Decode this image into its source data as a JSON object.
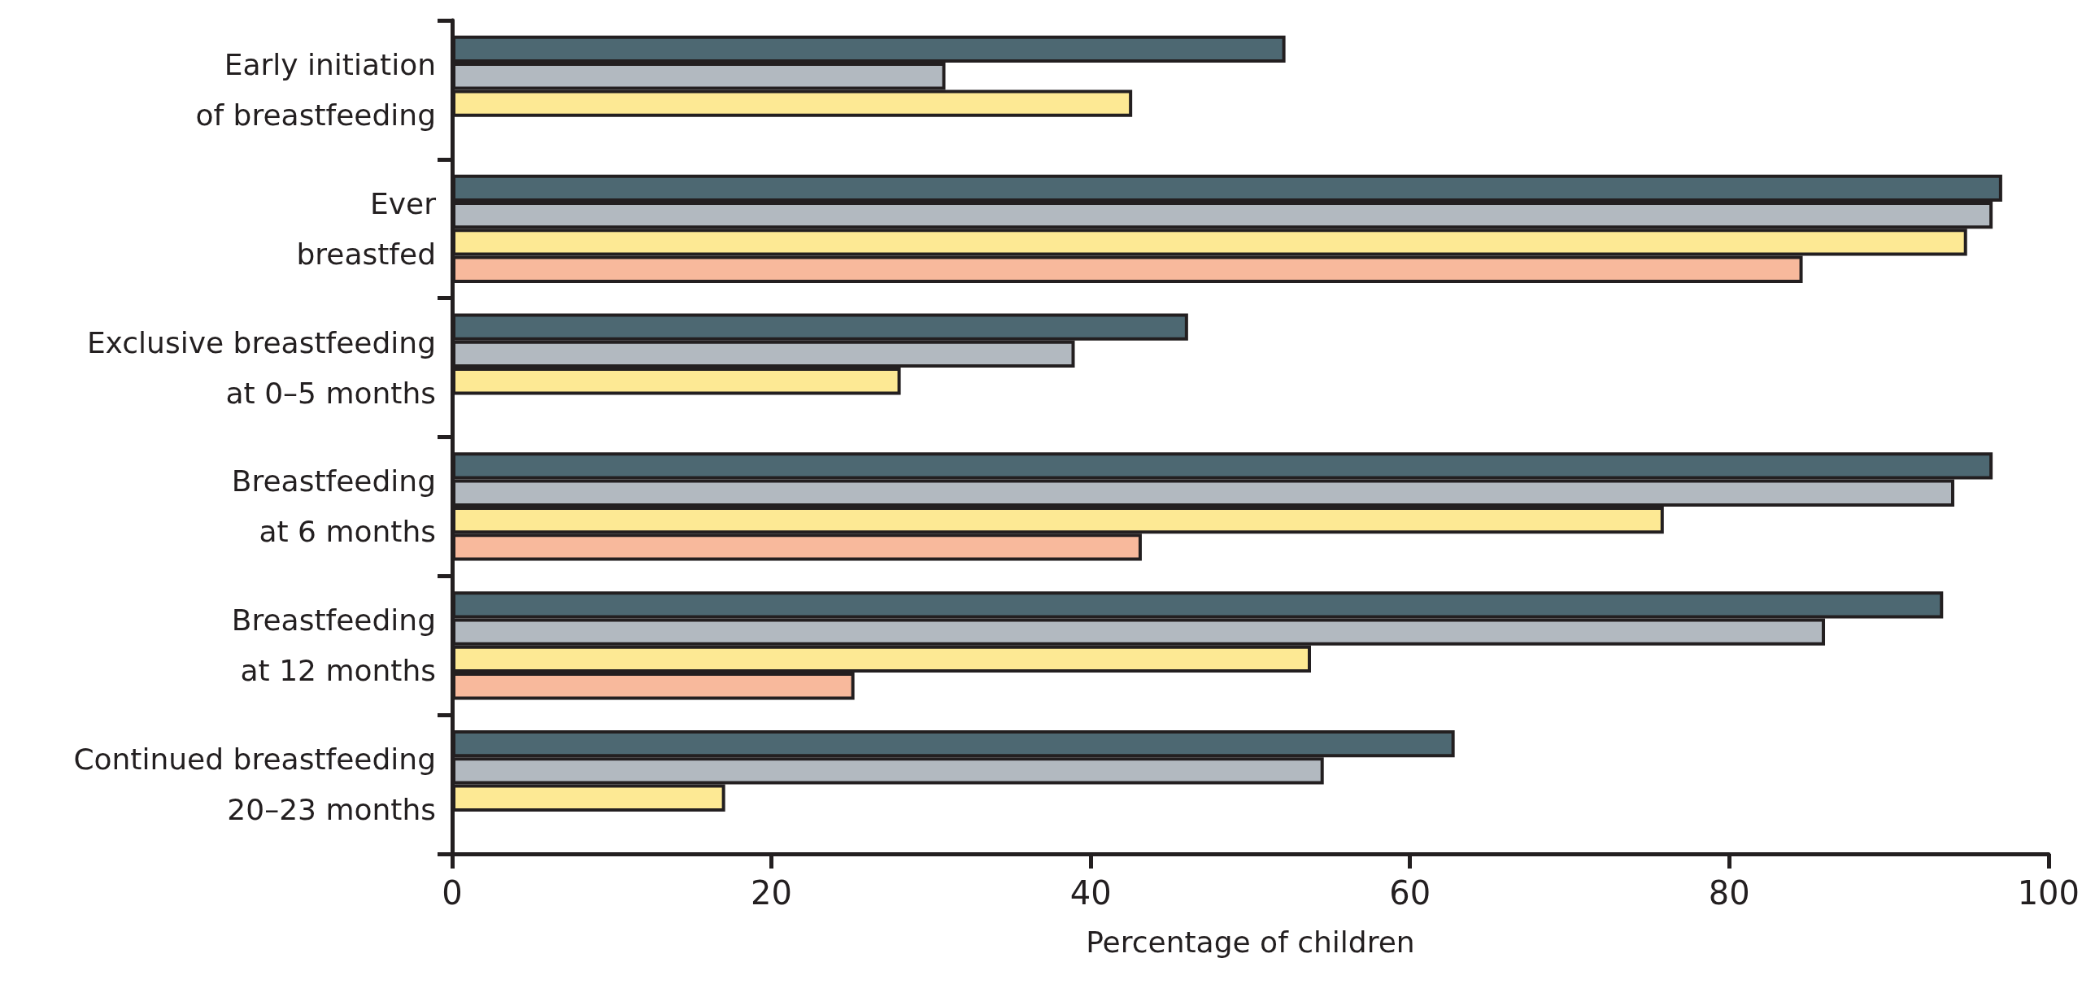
{
  "chart_data": {
    "type": "bar",
    "orientation": "horizontal",
    "xlabel": "Percentage of children",
    "categories": [
      "Early initiation\nof breastfeeding",
      "Ever\nbreastfed",
      "Exclusive breastfeeding\nat 0–5 months",
      "Breastfeeding\nat 6 months",
      "Breastfeeding\nat 12 months",
      "Continued breastfeeding\n20–23 months"
    ],
    "series": [
      {
        "color": "#4d6872",
        "values": [
          52.2,
          97.1,
          46.1,
          96.5,
          93.4,
          62.8
        ]
      },
      {
        "color": "#b2b9c0",
        "values": [
          30.9,
          96.5,
          39.0,
          94.1,
          86.0,
          54.6
        ]
      },
      {
        "color": "#fde994",
        "values": [
          42.6,
          94.9,
          28.1,
          75.9,
          53.8,
          17.1
        ]
      },
      {
        "color": "#f8b99c",
        "values": [
          null,
          84.6,
          null,
          43.2,
          25.2,
          null
        ]
      }
    ],
    "xlim": [
      0,
      100
    ],
    "xticks": [
      0,
      20,
      40,
      60,
      80,
      100
    ]
  }
}
